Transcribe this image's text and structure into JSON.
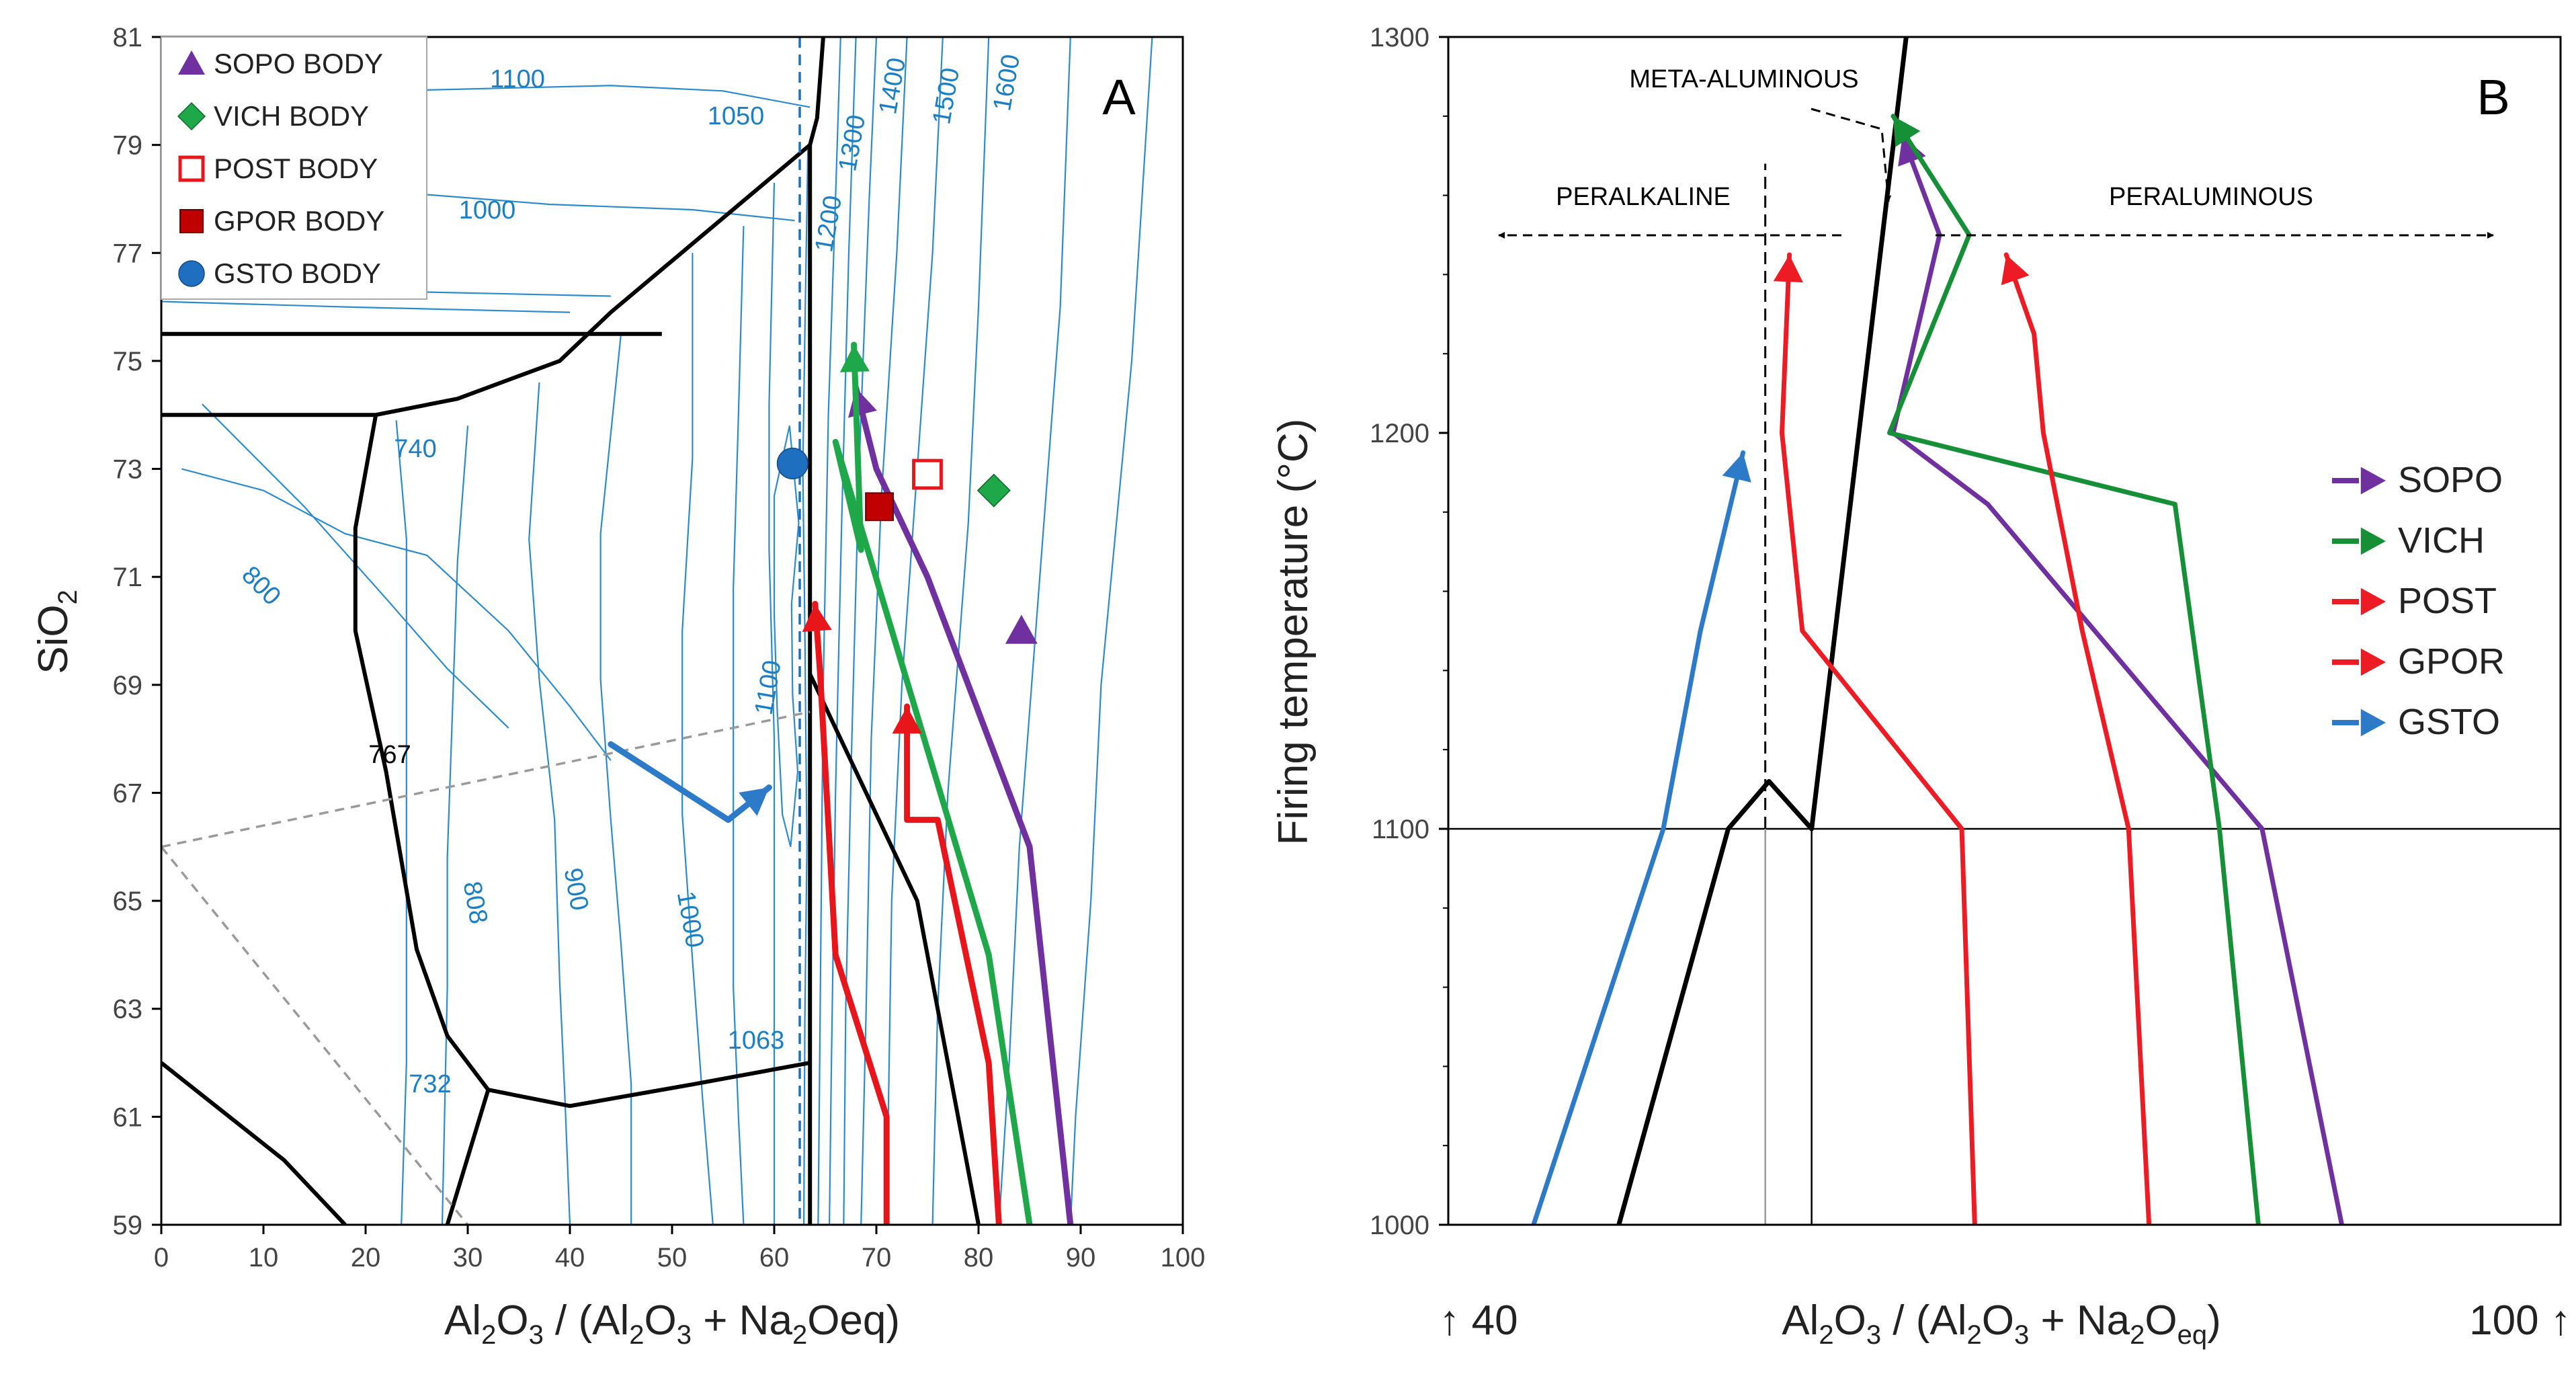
{
  "chart_data": [
    {
      "type": "line",
      "panel_label": "A",
      "xlabel": "Al2O3 / (Al2O3 + Na2Oeq)",
      "ylabel": "SiO2",
      "xlim": [
        0,
        100
      ],
      "ylim": [
        59,
        81
      ],
      "xticks": [
        0,
        10,
        20,
        30,
        40,
        50,
        60,
        70,
        80,
        90,
        100
      ],
      "yticks": [
        59,
        61,
        63,
        65,
        67,
        69,
        71,
        73,
        75,
        77,
        79,
        81
      ],
      "grid": false,
      "legend_position": "top-left",
      "legend": [
        {
          "label": "SOPO BODY",
          "marker": "triangle",
          "color": "#7030a0",
          "filled": true
        },
        {
          "label": "VICH BODY",
          "marker": "diamond",
          "color": "#1fa84a",
          "filled": true
        },
        {
          "label": "POST BODY",
          "marker": "square",
          "color": "#e8161b",
          "filled": false
        },
        {
          "label": "GPOR BODY",
          "marker": "square",
          "color": "#c00000",
          "filled": true
        },
        {
          "label": "GSTO BODY",
          "marker": "circle",
          "color": "#1f6fc1",
          "filled": true
        }
      ],
      "body_points": [
        {
          "name": "SOPO BODY",
          "x": 84.2,
          "y": 70.0
        },
        {
          "name": "VICH BODY",
          "x": 81.5,
          "y": 72.6
        },
        {
          "name": "POST BODY",
          "x": 75.0,
          "y": 72.9
        },
        {
          "name": "GPOR BODY",
          "x": 70.3,
          "y": 72.3
        },
        {
          "name": "GSTO BODY",
          "x": 61.8,
          "y": 73.1
        }
      ],
      "isotherm_labels": [
        "1600",
        "1500",
        "1400",
        "1300",
        "1200",
        "1100",
        "1050",
        "1000",
        "740",
        "800",
        "767",
        "808",
        "900",
        "1000",
        "1100",
        "1063",
        "732"
      ],
      "firing_paths": [
        {
          "name": "SOPO",
          "color": "#7030a0",
          "points": [
            [
              89,
              59
            ],
            [
              85,
              66
            ],
            [
              75,
              71
            ],
            [
              70,
              73
            ],
            [
              68,
              74.5
            ]
          ]
        },
        {
          "name": "VICH",
          "color": "#1fa84a",
          "points": [
            [
              85,
              59
            ],
            [
              81,
              64
            ],
            [
              66,
              73.5
            ],
            [
              68.5,
              71.5
            ],
            [
              67.8,
              75.3
            ]
          ]
        },
        {
          "name": "POST",
          "color": "#e8161b",
          "points": [
            [
              82,
              59
            ],
            [
              81,
              62
            ],
            [
              76,
              66.5
            ],
            [
              73,
              66.5
            ],
            [
              73,
              68.6
            ]
          ]
        },
        {
          "name": "GPOR",
          "color": "#e8161b",
          "points": [
            [
              71,
              59
            ],
            [
              71,
              61
            ],
            [
              66,
              64
            ],
            [
              64.5,
              69.2
            ],
            [
              64,
              70.5
            ]
          ]
        },
        {
          "name": "GSTO",
          "color": "#2c7ac8",
          "points": [
            [
              44,
              67.9
            ],
            [
              55.5,
              66.5
            ],
            [
              59.5,
              67.1
            ]
          ]
        }
      ],
      "reference_line_x": 62.5
    },
    {
      "type": "line",
      "panel_label": "B",
      "xlabel": "Al2O3 / (Al2O3 + Na2Oeq)",
      "ylabel": "Firing temperature (°C)",
      "ylim": [
        1000,
        1300
      ],
      "yticks": [
        1000,
        1100,
        1200,
        1300
      ],
      "xlim": [
        40,
        100
      ],
      "x_end_labels": [
        "↑ 40",
        "100 ↑"
      ],
      "grid": false,
      "legend_position": "right",
      "annotations": [
        "META-ALUMINOUS",
        "PERALKALINE",
        "PERALUMINOUS"
      ],
      "series": [
        {
          "name": "SOPO",
          "color": "#7030a0",
          "points": [
            [
              88.2,
              1000
            ],
            [
              83.9,
              1100
            ],
            [
              69.1,
              1182
            ],
            [
              64.0,
              1200
            ],
            [
              66.5,
              1250
            ],
            [
              64.5,
              1275
            ]
          ]
        },
        {
          "name": "VICH",
          "color": "#159036",
          "points": [
            [
              83.7,
              1000
            ],
            [
              81.6,
              1100
            ],
            [
              79.2,
              1182
            ],
            [
              63.8,
              1200
            ],
            [
              68.1,
              1250
            ],
            [
              64.0,
              1280
            ]
          ]
        },
        {
          "name": "POST",
          "color": "#ed1c24",
          "points": [
            [
              77.8,
              1000
            ],
            [
              76.7,
              1100
            ],
            [
              74.2,
              1150
            ],
            [
              72.1,
              1200
            ],
            [
              71.6,
              1225
            ],
            [
              70.1,
              1245
            ]
          ]
        },
        {
          "name": "GPOR",
          "color": "#ed1c24",
          "points": [
            [
              68.4,
              1000
            ],
            [
              67.7,
              1100
            ],
            [
              59.1,
              1150
            ],
            [
              58.0,
              1200
            ],
            [
              58.4,
              1245
            ]
          ]
        },
        {
          "name": "GSTO",
          "color": "#2c7ac8",
          "points": [
            [
              44.6,
              1000
            ],
            [
              51.6,
              1100
            ],
            [
              53.6,
              1150
            ],
            [
              55.9,
              1195
            ]
          ]
        }
      ],
      "boundary_line": [
        [
          49.2,
          1000
        ],
        [
          55.1,
          1100
        ],
        [
          57.3,
          1112
        ],
        [
          59.6,
          1100
        ],
        [
          64.7,
          1300
        ]
      ],
      "reference_lines": {
        "vertical_x": [
          57.1,
          59.6
        ],
        "horizontal_y": 1100
      }
    }
  ]
}
